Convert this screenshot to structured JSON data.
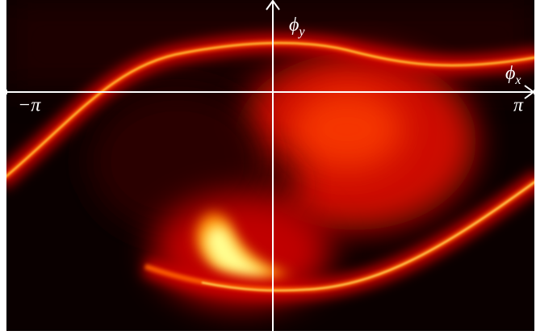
{
  "chart_data": {
    "type": "heatmap",
    "x_label": {
      "symbol": "ϕ",
      "subscript": "x"
    },
    "y_label": {
      "symbol": "ϕ",
      "subscript": "y"
    },
    "xlim": [
      -3.14159,
      3.14159
    ],
    "xticks": [
      {
        "value": -3.14159,
        "label": "−π"
      },
      {
        "value": 3.14159,
        "label": "π"
      }
    ]
  }
}
